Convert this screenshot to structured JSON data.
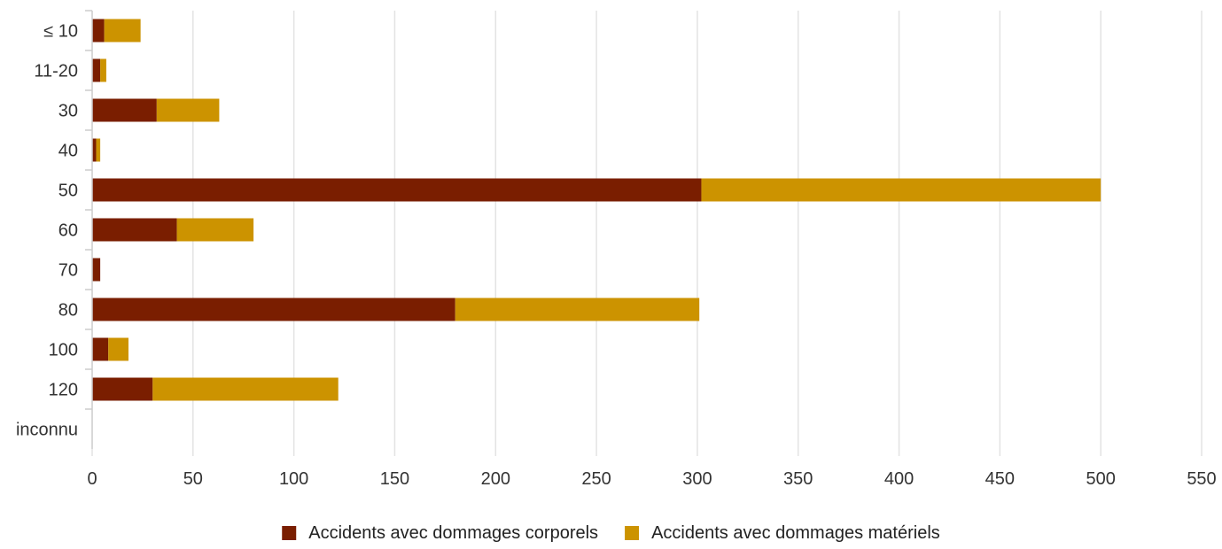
{
  "chart_data": {
    "type": "bar",
    "orientation": "horizontal",
    "stacked": true,
    "categories": [
      "≤ 10",
      "11-20",
      "30",
      "40",
      "50",
      "60",
      "70",
      "80",
      "100",
      "120",
      "inconnu"
    ],
    "series": [
      {
        "name": "Accidents avec dommages corporels",
        "color": "#7a1e00",
        "values": [
          6,
          4,
          32,
          2,
          302,
          42,
          4,
          180,
          8,
          30,
          0
        ]
      },
      {
        "name": "Accidents avec dommages matériels",
        "color": "#cc9300",
        "values": [
          18,
          3,
          31,
          2,
          198,
          38,
          0,
          121,
          10,
          92,
          0
        ]
      }
    ],
    "xlim": [
      0,
      550
    ],
    "xticks": [
      0,
      50,
      100,
      150,
      200,
      250,
      300,
      350,
      400,
      450,
      500,
      550
    ],
    "grid": "vertical",
    "legend_position": "bottom-center",
    "title": "",
    "xlabel": "",
    "ylabel": ""
  }
}
